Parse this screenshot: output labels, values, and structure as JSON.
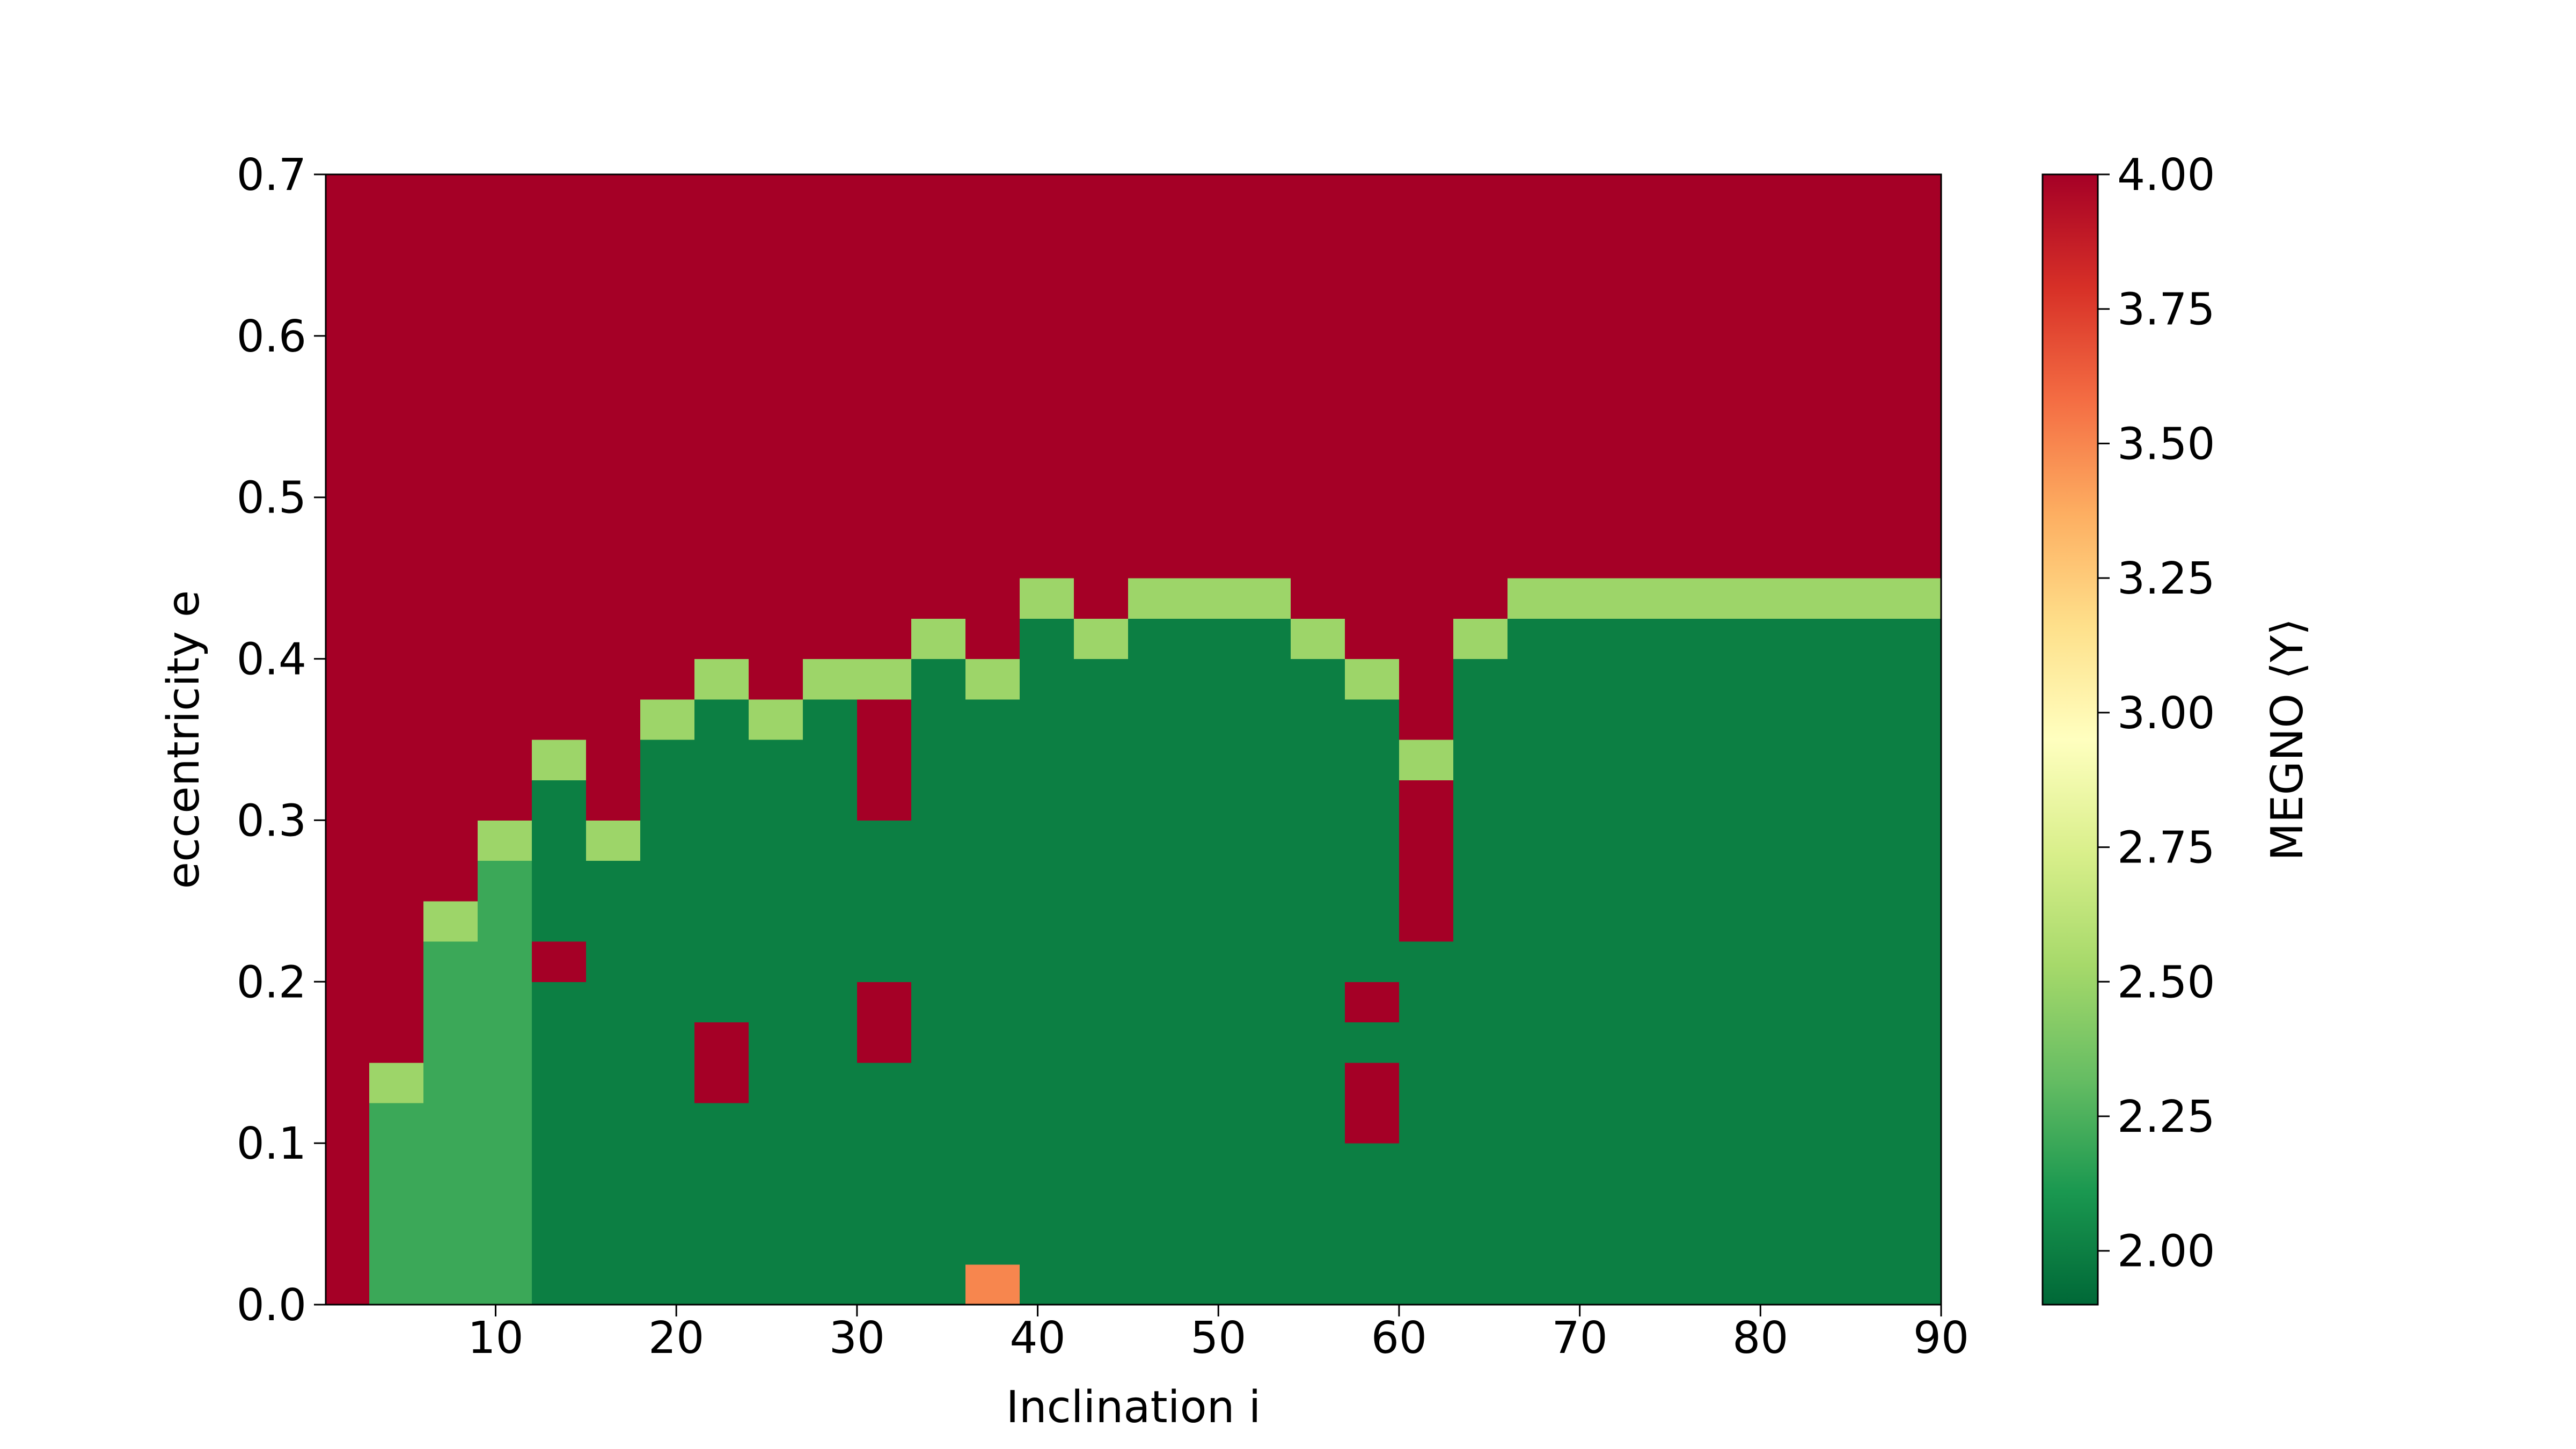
{
  "chart_data": {
    "type": "heatmap",
    "xlabel": "Inclination i",
    "ylabel": "eccentricity e",
    "colorbar_label": "MEGNO ⟨Y⟩",
    "colormap": "RdYlGn_r",
    "xlim": [
      0.6,
      90
    ],
    "ylim": [
      0,
      0.7
    ],
    "xticks": [
      10,
      20,
      30,
      40,
      50,
      60,
      70,
      80,
      90
    ],
    "yticks": [
      {
        "value": 0,
        "label": "0.0"
      },
      0.1,
      0.2,
      0.3,
      0.4,
      0.5,
      0.6,
      0.7
    ],
    "clim": [
      1.9,
      4.0
    ],
    "cticks": [
      {
        "value": 2,
        "label": "2.00"
      },
      {
        "value": 2.25,
        "label": "2.25"
      },
      {
        "value": 2.5,
        "label": "2.50"
      },
      {
        "value": 2.75,
        "label": "2.75"
      },
      {
        "value": 3,
        "label": "3.00"
      },
      {
        "value": 3.25,
        "label": "3.25"
      },
      {
        "value": 3.5,
        "label": "3.50"
      },
      {
        "value": 3.75,
        "label": "3.75"
      },
      {
        "value": 4,
        "label": "4.00"
      }
    ],
    "x_edges": [
      0.6,
      3,
      6,
      9,
      12,
      15,
      18,
      21,
      24,
      27,
      30,
      33,
      36,
      39,
      42,
      45,
      48,
      51,
      54,
      57,
      60,
      63,
      66,
      69,
      72,
      75,
      78,
      81,
      84,
      87,
      90
    ],
    "y_edges": [
      0,
      0.025,
      0.05,
      0.075,
      0.1,
      0.125,
      0.15,
      0.175,
      0.2,
      0.225,
      0.25,
      0.275,
      0.3,
      0.325,
      0.35,
      0.375,
      0.4,
      0.425,
      0.45,
      0.475,
      0.5,
      0.525,
      0.55,
      0.575,
      0.6,
      0.625,
      0.65,
      0.675,
      0.7
    ],
    "z": [
      [
        4,
        2.2,
        2.2,
        2.2,
        2,
        2,
        2,
        2,
        2,
        2,
        2,
        2,
        3.5,
        2,
        2,
        2,
        2,
        2,
        2,
        2,
        2,
        2,
        2,
        2,
        2,
        2,
        2,
        2,
        2,
        2
      ],
      [
        4,
        2.2,
        2.2,
        2.2,
        2,
        2,
        2,
        2,
        2,
        2,
        2,
        2,
        2,
        2,
        2,
        2,
        2,
        2,
        2,
        2,
        2,
        2,
        2,
        2,
        2,
        2,
        2,
        2,
        2,
        2
      ],
      [
        4,
        2.2,
        2.2,
        2.2,
        2,
        2,
        2,
        2,
        2,
        2,
        2,
        2,
        2,
        2,
        2,
        2,
        2,
        2,
        2,
        2,
        2,
        2,
        2,
        2,
        2,
        2,
        2,
        2,
        2,
        2
      ],
      [
        4,
        2.2,
        2.2,
        2.2,
        2,
        2,
        2,
        2,
        2,
        2,
        2,
        2,
        2,
        2,
        2,
        2,
        2,
        2,
        2,
        2,
        2,
        2,
        2,
        2,
        2,
        2,
        2,
        2,
        2,
        2
      ],
      [
        4,
        2.2,
        2.2,
        2.2,
        2,
        2,
        2,
        2,
        2,
        2,
        2,
        2,
        2,
        2,
        2,
        2,
        2,
        2,
        2,
        4,
        2,
        2,
        2,
        2,
        2,
        2,
        2,
        2,
        2,
        2
      ],
      [
        4,
        2.5,
        2.2,
        2.2,
        2,
        2,
        2,
        4,
        2,
        2,
        2,
        2,
        2,
        2,
        2,
        2,
        2,
        2,
        2,
        4,
        2,
        2,
        2,
        2,
        2,
        2,
        2,
        2,
        2,
        2
      ],
      [
        4,
        4,
        2.2,
        2.2,
        2,
        2,
        2,
        4,
        2,
        2,
        4,
        2,
        2,
        2,
        2,
        2,
        2,
        2,
        2,
        2,
        2,
        2,
        2,
        2,
        2,
        2,
        2,
        2,
        2,
        2
      ],
      [
        4,
        4,
        2.2,
        2.2,
        2,
        2,
        2,
        2,
        2,
        2,
        4,
        2,
        2,
        2,
        2,
        2,
        2,
        2,
        2,
        4,
        2,
        2,
        2,
        2,
        2,
        2,
        2,
        2,
        2,
        2
      ],
      [
        4,
        4,
        2.2,
        2.2,
        4,
        2,
        2,
        2,
        2,
        2,
        2,
        2,
        2,
        2,
        2,
        2,
        2,
        2,
        2,
        2,
        2,
        2,
        2,
        2,
        2,
        2,
        2,
        2,
        2,
        2
      ],
      [
        4,
        4,
        2.5,
        2.2,
        2,
        2,
        2,
        2,
        2,
        2,
        2,
        2,
        2,
        2,
        2,
        2,
        2,
        2,
        2,
        2,
        4,
        2,
        2,
        2,
        2,
        2,
        2,
        2,
        2,
        2
      ],
      [
        4,
        4,
        4,
        2.2,
        2,
        2,
        2,
        2,
        2,
        2,
        2,
        2,
        2,
        2,
        2,
        2,
        2,
        2,
        2,
        2,
        4,
        2,
        2,
        2,
        2,
        2,
        2,
        2,
        2,
        2
      ],
      [
        4,
        4,
        4,
        2.5,
        2,
        2.5,
        2,
        2,
        2,
        2,
        2,
        2,
        2,
        2,
        2,
        2,
        2,
        2,
        2,
        2,
        4,
        2,
        2,
        2,
        2,
        2,
        2,
        2,
        2,
        2
      ],
      [
        4,
        4,
        4,
        4,
        2,
        4,
        2,
        2,
        2,
        2,
        4,
        2,
        2,
        2,
        2,
        2,
        2,
        2,
        2,
        2,
        4,
        2,
        2,
        2,
        2,
        2,
        2,
        2,
        2,
        2
      ],
      [
        4,
        4,
        4,
        4,
        2.5,
        4,
        2,
        2,
        2,
        2,
        4,
        2,
        2,
        2,
        2,
        2,
        2,
        2,
        2,
        2,
        2.5,
        2,
        2,
        2,
        2,
        2,
        2,
        2,
        2,
        2
      ],
      [
        4,
        4,
        4,
        4,
        4,
        4,
        2.5,
        2,
        2.5,
        2,
        4,
        2,
        2,
        2,
        2,
        2,
        2,
        2,
        2,
        2,
        4,
        2,
        2,
        2,
        2,
        2,
        2,
        2,
        2,
        2
      ],
      [
        4,
        4,
        4,
        4,
        4,
        4,
        4,
        2.5,
        4,
        2.5,
        2.5,
        2,
        2.5,
        2,
        2,
        2,
        2,
        2,
        2,
        2.5,
        4,
        2,
        2,
        2,
        2,
        2,
        2,
        2,
        2,
        2
      ],
      [
        4,
        4,
        4,
        4,
        4,
        4,
        4,
        4,
        4,
        4,
        4,
        2.5,
        4,
        2,
        2.5,
        2,
        2,
        2,
        2.5,
        4,
        4,
        2.5,
        2,
        2,
        2,
        2,
        2,
        2,
        2,
        2
      ],
      [
        4,
        4,
        4,
        4,
        4,
        4,
        4,
        4,
        4,
        4,
        4,
        4,
        4,
        2.5,
        4,
        2.5,
        2.5,
        2.5,
        4,
        4,
        4,
        4,
        2.5,
        2.5,
        2.5,
        2.5,
        2.5,
        2.5,
        2.5,
        2.5
      ],
      [
        4,
        4,
        4,
        4,
        4,
        4,
        4,
        4,
        4,
        4,
        4,
        4,
        4,
        4,
        4,
        4,
        4,
        4,
        4,
        4,
        4,
        4,
        4,
        4,
        4,
        4,
        4,
        4,
        4,
        4
      ],
      [
        4,
        4,
        4,
        4,
        4,
        4,
        4,
        4,
        4,
        4,
        4,
        4,
        4,
        4,
        4,
        4,
        4,
        4,
        4,
        4,
        4,
        4,
        4,
        4,
        4,
        4,
        4,
        4,
        4,
        4
      ],
      [
        4,
        4,
        4,
        4,
        4,
        4,
        4,
        4,
        4,
        4,
        4,
        4,
        4,
        4,
        4,
        4,
        4,
        4,
        4,
        4,
        4,
        4,
        4,
        4,
        4,
        4,
        4,
        4,
        4,
        4
      ],
      [
        4,
        4,
        4,
        4,
        4,
        4,
        4,
        4,
        4,
        4,
        4,
        4,
        4,
        4,
        4,
        4,
        4,
        4,
        4,
        4,
        4,
        4,
        4,
        4,
        4,
        4,
        4,
        4,
        4,
        4
      ],
      [
        4,
        4,
        4,
        4,
        4,
        4,
        4,
        4,
        4,
        4,
        4,
        4,
        4,
        4,
        4,
        4,
        4,
        4,
        4,
        4,
        4,
        4,
        4,
        4,
        4,
        4,
        4,
        4,
        4,
        4
      ],
      [
        4,
        4,
        4,
        4,
        4,
        4,
        4,
        4,
        4,
        4,
        4,
        4,
        4,
        4,
        4,
        4,
        4,
        4,
        4,
        4,
        4,
        4,
        4,
        4,
        4,
        4,
        4,
        4,
        4,
        4
      ],
      [
        4,
        4,
        4,
        4,
        4,
        4,
        4,
        4,
        4,
        4,
        4,
        4,
        4,
        4,
        4,
        4,
        4,
        4,
        4,
        4,
        4,
        4,
        4,
        4,
        4,
        4,
        4,
        4,
        4,
        4
      ],
      [
        4,
        4,
        4,
        4,
        4,
        4,
        4,
        4,
        4,
        4,
        4,
        4,
        4,
        4,
        4,
        4,
        4,
        4,
        4,
        4,
        4,
        4,
        4,
        4,
        4,
        4,
        4,
        4,
        4,
        4
      ],
      [
        4,
        4,
        4,
        4,
        4,
        4,
        4,
        4,
        4,
        4,
        4,
        4,
        4,
        4,
        4,
        4,
        4,
        4,
        4,
        4,
        4,
        4,
        4,
        4,
        4,
        4,
        4,
        4,
        4,
        4
      ],
      [
        4,
        4,
        4,
        4,
        4,
        4,
        4,
        4,
        4,
        4,
        4,
        4,
        4,
        4,
        4,
        4,
        4,
        4,
        4,
        4,
        4,
        4,
        4,
        4,
        4,
        4,
        4,
        4,
        4,
        4
      ]
    ]
  }
}
